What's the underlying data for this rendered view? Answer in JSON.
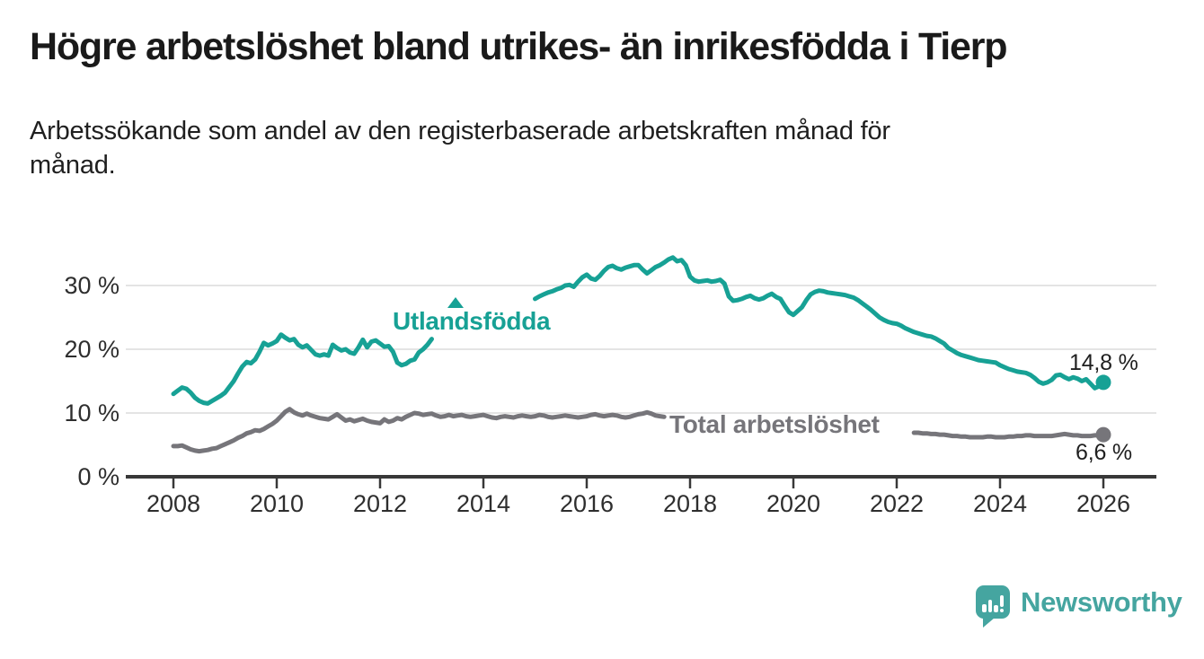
{
  "chart_data": {
    "type": "line",
    "title": "Högre arbetslöshet bland utrikes- än inrikesfödda i Tierp",
    "subtitle_lines": [
      "Arbetssökande som andel av den registerbaserade arbetskraften månad för",
      "månad."
    ],
    "unit": "%",
    "x_start": 2008.0,
    "x_step_years": 0.0833333333,
    "x_ticks": [
      "2008",
      "2010",
      "2012",
      "2014",
      "2016",
      "2018",
      "2020",
      "2022",
      "2024",
      "2026"
    ],
    "y_ticks": [
      "0 %",
      "10 %",
      "20 %",
      "30 %"
    ],
    "y_tick_values": [
      0,
      10,
      20,
      30
    ],
    "xlim": [
      2007.1,
      2027.0
    ],
    "ylim": [
      0,
      37.5
    ],
    "grid": "horizontal",
    "legend_position": "inline-labels",
    "series": [
      {
        "name": "Utlandsfödda",
        "color": "#17A195",
        "marker": "triangle-up",
        "end_label": "14,8 %",
        "last_value": 14.8,
        "values": [
          13.0,
          13.5,
          14.0,
          13.8,
          13.2,
          12.4,
          11.9,
          11.6,
          11.5,
          11.9,
          12.3,
          12.7,
          13.2,
          14.1,
          15.0,
          16.2,
          17.3,
          18.0,
          17.8,
          18.4,
          19.6,
          21.0,
          20.6,
          20.9,
          21.3,
          22.3,
          21.8,
          21.4,
          21.6,
          20.7,
          20.3,
          20.6,
          19.9,
          19.2,
          19.0,
          19.2,
          19.0,
          20.7,
          20.2,
          19.8,
          20.0,
          19.5,
          19.3,
          20.3,
          21.5,
          20.3,
          21.2,
          21.4,
          20.9,
          20.4,
          20.5,
          19.6,
          17.9,
          17.5,
          17.7,
          18.2,
          18.4,
          19.5,
          20.0,
          20.7,
          21.6,
          null,
          null,
          null,
          null,
          null,
          null,
          null,
          null,
          null,
          null,
          null,
          null,
          null,
          null,
          null,
          null,
          null,
          null,
          null,
          null,
          null,
          null,
          null,
          27.9,
          28.3,
          28.6,
          28.9,
          29.1,
          29.4,
          29.6,
          30.0,
          30.1,
          29.8,
          30.6,
          31.3,
          31.7,
          31.1,
          30.9,
          31.5,
          32.3,
          32.9,
          33.1,
          32.7,
          32.5,
          32.8,
          33.0,
          33.2,
          33.2,
          32.5,
          31.9,
          32.4,
          32.9,
          33.2,
          33.6,
          34.1,
          34.4,
          33.8,
          34.0,
          33.2,
          31.4,
          30.8,
          30.6,
          30.7,
          30.8,
          30.6,
          30.7,
          30.9,
          30.3,
          28.3,
          27.6,
          27.7,
          27.9,
          28.2,
          28.4,
          28.0,
          27.8,
          28.0,
          28.4,
          28.7,
          28.2,
          27.9,
          26.8,
          25.8,
          25.4,
          26.0,
          26.6,
          27.7,
          28.6,
          29.0,
          29.2,
          29.1,
          28.9,
          28.8,
          28.7,
          28.6,
          28.5,
          28.3,
          28.1,
          27.7,
          27.2,
          26.7,
          26.2,
          25.6,
          25.0,
          24.6,
          24.3,
          24.1,
          24.0,
          23.7,
          23.3,
          23.0,
          22.7,
          22.5,
          22.3,
          22.1,
          22.0,
          21.7,
          21.3,
          20.9,
          20.2,
          19.8,
          19.4,
          19.1,
          18.9,
          18.7,
          18.5,
          18.3,
          18.2,
          18.1,
          18.0,
          17.9,
          17.5,
          17.2,
          16.9,
          16.7,
          16.5,
          16.4,
          16.3,
          16.0,
          15.5,
          14.9,
          14.6,
          14.8,
          15.2,
          15.9,
          16.0,
          15.6,
          15.3,
          15.6,
          15.4,
          15.0,
          15.3,
          14.6,
          13.9,
          14.2,
          14.8
        ]
      },
      {
        "name": "Total arbetslöshet",
        "color": "#76757A",
        "marker": "none",
        "end_label": "6,6 %",
        "last_value": 6.6,
        "values": [
          4.8,
          4.8,
          4.9,
          4.6,
          4.3,
          4.1,
          4.0,
          4.1,
          4.2,
          4.4,
          4.5,
          4.8,
          5.1,
          5.4,
          5.7,
          6.1,
          6.4,
          6.8,
          7.0,
          7.3,
          7.2,
          7.5,
          7.9,
          8.3,
          8.8,
          9.5,
          10.2,
          10.6,
          10.1,
          9.8,
          9.6,
          9.9,
          9.6,
          9.4,
          9.2,
          9.1,
          9.0,
          9.4,
          9.8,
          9.3,
          8.8,
          9.0,
          8.7,
          8.9,
          9.1,
          8.8,
          8.6,
          8.5,
          8.4,
          9.0,
          8.6,
          8.8,
          9.2,
          9.0,
          9.4,
          9.7,
          10.0,
          9.9,
          9.7,
          9.8,
          9.9,
          9.6,
          9.4,
          9.5,
          9.7,
          9.5,
          9.6,
          9.7,
          9.5,
          9.4,
          9.5,
          9.6,
          9.7,
          9.5,
          9.3,
          9.2,
          9.4,
          9.5,
          9.4,
          9.3,
          9.5,
          9.6,
          9.5,
          9.4,
          9.5,
          9.7,
          9.6,
          9.4,
          9.3,
          9.4,
          9.5,
          9.6,
          9.5,
          9.4,
          9.3,
          9.4,
          9.5,
          9.7,
          9.8,
          9.6,
          9.5,
          9.6,
          9.7,
          9.6,
          9.4,
          9.3,
          9.4,
          9.6,
          9.8,
          9.9,
          10.1,
          9.9,
          9.6,
          9.5,
          9.4,
          null,
          null,
          null,
          null,
          null,
          null,
          null,
          null,
          null,
          null,
          null,
          null,
          null,
          null,
          null,
          null,
          null,
          null,
          null,
          null,
          null,
          null,
          null,
          null,
          null,
          null,
          null,
          null,
          null,
          null,
          null,
          null,
          null,
          null,
          null,
          null,
          null,
          null,
          null,
          null,
          null,
          null,
          null,
          null,
          null,
          null,
          null,
          null,
          null,
          null,
          null,
          null,
          null,
          null,
          null,
          null,
          null,
          6.9,
          6.9,
          6.8,
          6.8,
          6.7,
          6.7,
          6.6,
          6.6,
          6.5,
          6.4,
          6.4,
          6.3,
          6.3,
          6.2,
          6.2,
          6.2,
          6.2,
          6.3,
          6.3,
          6.2,
          6.2,
          6.2,
          6.3,
          6.3,
          6.4,
          6.4,
          6.5,
          6.5,
          6.4,
          6.4,
          6.4,
          6.4,
          6.4,
          6.5,
          6.6,
          6.7,
          6.6,
          6.5,
          6.5,
          6.4,
          6.4,
          6.4,
          6.5,
          6.5,
          6.6
        ]
      }
    ]
  },
  "footer": {
    "brand": "Newsworthy"
  },
  "colors": {
    "utlandsfodda_line": "#17A195",
    "total_line": "#76757A",
    "axis": "#383838",
    "gridline": "#dcdcdc",
    "brand_teal": "#45A5A0"
  }
}
